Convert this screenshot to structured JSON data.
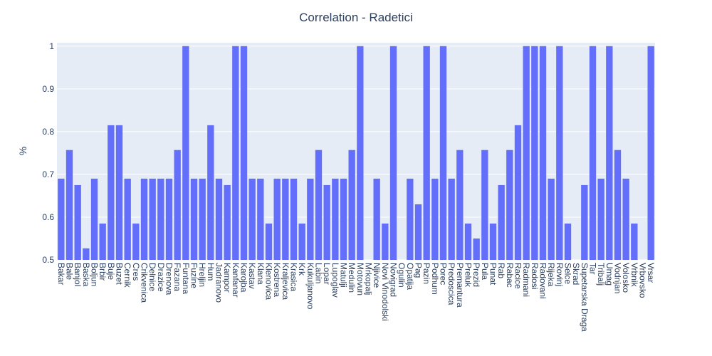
{
  "chart_data": {
    "type": "bar",
    "title": "Correlation - Radetici",
    "y_label": "%",
    "categories": [
      "Bakar",
      "Bale",
      "Banjol",
      "Baska",
      "Boljun",
      "Brbir",
      "Buje",
      "Buzet",
      "Cernik",
      "Cres",
      "Crikvenica",
      "Delnice",
      "Drazice",
      "Drenova",
      "Fazana",
      "Funtana",
      "Fuzine",
      "Hreljin",
      "Hum",
      "Jadranovo",
      "Kampor",
      "Kanfanar",
      "Karojba",
      "Kastav",
      "Klana",
      "Klenovica",
      "Kostrena",
      "Kraljevica",
      "Krasica",
      "Krk",
      "Kukuljanovo",
      "Labin",
      "Lopar",
      "Lupoglav",
      "Matulji",
      "Medulin",
      "Motovun",
      "Mrkopalj",
      "Njivice",
      "Novi Vinodolski",
      "Novigrad",
      "Ogulin",
      "Opatija",
      "Pag",
      "Pazin",
      "Podhum",
      "Porec",
      "Predoscica",
      "Premantura",
      "Preluk",
      "Prezid",
      "Pula",
      "Punat",
      "Rab",
      "Rabac",
      "Racice",
      "Radmani",
      "Radosi",
      "Radovani",
      "Rijeka",
      "Rovinj",
      "Selce",
      "Skrad",
      "Supetarska Draga",
      "Tar",
      "Tribalj",
      "Umag",
      "Vodnjan",
      "Volosko",
      "Vrbnik",
      "Vrbovsko",
      "Vrsar"
    ],
    "values": [
      0.69,
      0.757,
      0.675,
      0.527,
      0.69,
      0.585,
      0.815,
      0.815,
      0.69,
      0.585,
      0.69,
      0.69,
      0.69,
      0.69,
      0.757,
      1,
      0.69,
      0.69,
      0.815,
      0.69,
      0.675,
      1,
      1,
      0.69,
      0.69,
      0.585,
      0.69,
      0.69,
      0.69,
      0.585,
      0.69,
      0.757,
      0.675,
      0.69,
      0.69,
      0.757,
      1,
      null,
      0.69,
      0.585,
      1,
      null,
      0.69,
      0.63,
      1,
      0.69,
      1,
      0.69,
      0.757,
      0.585,
      0.55,
      0.757,
      0.585,
      0.675,
      0.757,
      0.815,
      1,
      1,
      1,
      0.69,
      1,
      0.585,
      null,
      0.675,
      1,
      0.69,
      1,
      0.757,
      0.69,
      0.585,
      null,
      1
    ],
    "color": "#636efa",
    "ylim": [
      0.5,
      1.008
    ],
    "yticks": [
      0.5,
      0.6,
      0.7,
      0.8,
      0.9,
      1
    ],
    "grid": true
  }
}
